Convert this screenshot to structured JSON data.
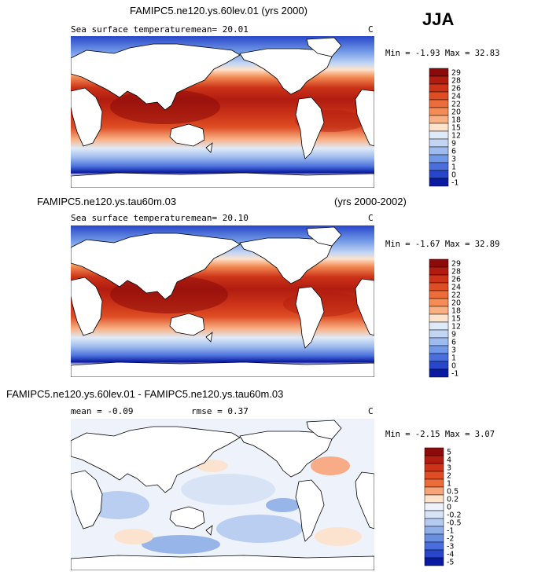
{
  "season": "JJA",
  "panels": [
    {
      "title": "FAMIPC5.ne120.ys.60lev.01 (yrs 2000)",
      "title_right": "",
      "variable": "Sea surface temperature",
      "stats": "mean=  20.01",
      "stats2": "",
      "units": "C",
      "minmax": "Min =  -1.93 Max =  32.83",
      "levels": [
        "29",
        "28",
        "26",
        "24",
        "22",
        "20",
        "18",
        "15",
        "12",
        "9",
        "6",
        "3",
        "1",
        "0",
        "-1"
      ],
      "colors": [
        "#8b0a0a",
        "#b01c10",
        "#cc3318",
        "#de4d24",
        "#ec6c3a",
        "#f38c55",
        "#f8b084",
        "#fde2cc",
        "#dfeaf8",
        "#c2d6f4",
        "#9dbbee",
        "#7198e6",
        "#4a6fdc",
        "#2746c9",
        "#0a1aa0"
      ]
    },
    {
      "title": "FAMIPC5.ne120.ys.tau60m.03",
      "title_right": "(yrs 2000-2002)",
      "variable": "Sea surface temperature",
      "stats": "mean=  20.10",
      "stats2": "",
      "units": "C",
      "minmax": "Min =  -1.67 Max =  32.89",
      "levels": [
        "29",
        "28",
        "26",
        "24",
        "22",
        "20",
        "18",
        "15",
        "12",
        "9",
        "6",
        "3",
        "1",
        "0",
        "-1"
      ],
      "colors": [
        "#8b0a0a",
        "#b01c10",
        "#cc3318",
        "#de4d24",
        "#ec6c3a",
        "#f38c55",
        "#f8b084",
        "#fde2cc",
        "#dfeaf8",
        "#c2d6f4",
        "#9dbbee",
        "#7198e6",
        "#4a6fdc",
        "#2746c9",
        "#0a1aa0"
      ]
    },
    {
      "title": "FAMIPC5.ne120.ys.60lev.01 - FAMIPC5.ne120.ys.tau60m.03",
      "title_right": "",
      "variable": "",
      "stats": "mean =  -0.09",
      "stats2": "rmse =   0.37",
      "units": "C",
      "minmax": "Min =  -2.15 Max =   3.07",
      "levels": [
        "5",
        "4",
        "3",
        "2",
        "1",
        "0.5",
        "0.2",
        "0",
        "-0.2",
        "-0.5",
        "-1",
        "-2",
        "-3",
        "-4",
        "-5"
      ],
      "colors": [
        "#8b0a0a",
        "#b01c10",
        "#cc3318",
        "#de4d24",
        "#ec6c3a",
        "#f8a47a",
        "#fde2cc",
        "#eef3fb",
        "#d6e3f6",
        "#b4cbf0",
        "#8fafe9",
        "#6a8fe0",
        "#4a6fdc",
        "#2746c9",
        "#0a1aa0"
      ]
    }
  ],
  "chart_data": [
    {
      "type": "heatmap",
      "title": "FAMIPC5.ne120.ys.60lev.01 (yrs 2000)",
      "variable": "Sea surface temperature",
      "units": "C",
      "mean": 20.01,
      "min": -1.93,
      "max": 32.83,
      "contour_levels": [
        -1,
        0,
        1,
        3,
        6,
        9,
        12,
        15,
        18,
        20,
        22,
        24,
        26,
        28,
        29
      ]
    },
    {
      "type": "heatmap",
      "title": "FAMIPC5.ne120.ys.tau60m.03",
      "years": "(yrs 2000-2002)",
      "variable": "Sea surface temperature",
      "units": "C",
      "mean": 20.1,
      "min": -1.67,
      "max": 32.89,
      "contour_levels": [
        -1,
        0,
        1,
        3,
        6,
        9,
        12,
        15,
        18,
        20,
        22,
        24,
        26,
        28,
        29
      ]
    },
    {
      "type": "heatmap",
      "title": "FAMIPC5.ne120.ys.60lev.01 - FAMIPC5.ne120.ys.tau60m.03",
      "units": "C",
      "mean": -0.09,
      "rmse": 0.37,
      "min": -2.15,
      "max": 3.07,
      "contour_levels": [
        -5,
        -4,
        -3,
        -2,
        -1,
        -0.5,
        -0.2,
        0,
        0.2,
        0.5,
        1,
        2,
        3,
        4,
        5
      ]
    }
  ]
}
